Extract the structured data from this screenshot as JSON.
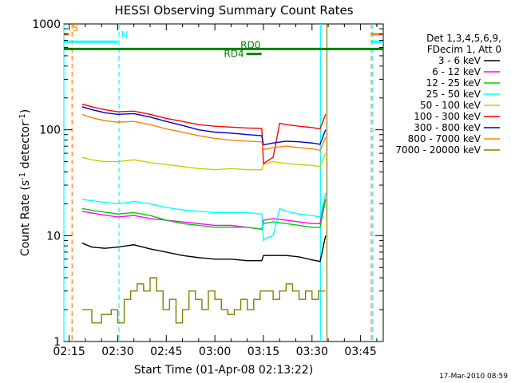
{
  "chart_data": {
    "type": "line",
    "title": "HESSI Observing Summary Count Rates",
    "xlabel": "Start Time (01-Apr-08 02:13:22)",
    "ylabel_main": "Count Rate (s",
    "ylabel_sup1": "-1",
    "ylabel_mid": " detector",
    "ylabel_sup2": "-1",
    "ylabel_end": ")",
    "y_scale": "log",
    "ylim": [
      1,
      1000
    ],
    "xlim": [
      "02:13:22",
      "03:52:00"
    ],
    "x_ticks": [
      {
        "label": "02:15",
        "min": 15
      },
      {
        "label": "02:30",
        "min": 30
      },
      {
        "label": "02:45",
        "min": 45
      },
      {
        "label": "03:00",
        "min": 60
      },
      {
        "label": "03:15",
        "min": 75
      },
      {
        "label": "03:30",
        "min": 90
      },
      {
        "label": "03:45",
        "min": 105
      }
    ],
    "y_ticks": [
      {
        "label": "1",
        "value": 1
      },
      {
        "label": "10",
        "value": 10
      },
      {
        "label": "100",
        "value": 100
      },
      {
        "label": "1000",
        "value": 1000
      }
    ],
    "legend_header": [
      "Det 1,3,4,5,6,9,",
      "FDecim 1, Att 0"
    ],
    "legend_placement": "right",
    "series": [
      {
        "name": "3 - 6 keV",
        "color": "#000000",
        "x": [
          19,
          22,
          26,
          30,
          35,
          40,
          45,
          50,
          55,
          60,
          65,
          70,
          74.5,
          75,
          78,
          82,
          86,
          90,
          92.5,
          94.2
        ],
        "y": [
          8.5,
          7.8,
          7.6,
          7.8,
          8.2,
          7.5,
          7.0,
          6.5,
          6.2,
          6.0,
          6.0,
          5.8,
          5.8,
          6.5,
          6.5,
          6.5,
          6.3,
          5.9,
          5.7,
          10
        ]
      },
      {
        "name": "6 - 12 keV",
        "color": "#ff00ff",
        "x": [
          19,
          24,
          30,
          35,
          40,
          45,
          50,
          55,
          60,
          65,
          70,
          74.5,
          75,
          78,
          82,
          86,
          90,
          92.5,
          94.2
        ],
        "y": [
          17,
          16,
          15,
          15.5,
          14.5,
          14,
          13.5,
          13,
          12.5,
          12.5,
          12,
          11.5,
          14,
          14.5,
          14,
          13.5,
          13,
          13,
          25
        ]
      },
      {
        "name": "12 - 25 keV",
        "color": "#00cc00",
        "x": [
          19,
          24,
          30,
          35,
          40,
          45,
          50,
          55,
          60,
          65,
          70,
          74.5,
          75,
          78,
          82,
          86,
          90,
          92.5,
          94.2
        ],
        "y": [
          18,
          17,
          16,
          16.5,
          15.5,
          14,
          13,
          12.5,
          12,
          12,
          12,
          11.5,
          13,
          13.5,
          13,
          12.5,
          12,
          12,
          22
        ]
      },
      {
        "name": "25 - 50 keV",
        "color": "#00ffff",
        "x": [
          19,
          24,
          30,
          35,
          40,
          45,
          50,
          55,
          60,
          65,
          70,
          74.5,
          75,
          76,
          78,
          80,
          82,
          86,
          90,
          92.5,
          94.2
        ],
        "y": [
          22,
          21,
          20,
          21,
          20,
          18.5,
          17.5,
          17,
          16.5,
          16.5,
          16.5,
          16,
          9,
          9.5,
          10,
          18,
          17,
          16,
          15.5,
          15,
          25
        ]
      },
      {
        "name": "50 - 100 keV",
        "color": "#cccc00",
        "x": [
          19,
          22,
          26,
          30,
          35,
          40,
          45,
          50,
          55,
          60,
          65,
          70,
          74.5,
          75,
          78,
          82,
          86,
          90,
          92.5,
          94.2
        ],
        "y": [
          55,
          52,
          50,
          50,
          52,
          49,
          47,
          45,
          43,
          42,
          43,
          42,
          42,
          47,
          50,
          48,
          47,
          46,
          45,
          60
        ]
      },
      {
        "name": "100 - 300 keV",
        "color": "#ff0000",
        "x": [
          19,
          22,
          26,
          30,
          35,
          40,
          45,
          50,
          55,
          60,
          65,
          70,
          74.5,
          75,
          78,
          80,
          82,
          86,
          90,
          92.5,
          94.2
        ],
        "y": [
          175,
          165,
          155,
          148,
          150,
          140,
          128,
          120,
          112,
          108,
          106,
          104,
          103,
          48,
          55,
          115,
          112,
          108,
          105,
          102,
          140
        ]
      },
      {
        "name": "300 - 800 keV",
        "color": "#0000cc",
        "x": [
          19,
          22,
          26,
          30,
          35,
          40,
          45,
          50,
          55,
          60,
          65,
          70,
          74.5,
          75,
          78,
          82,
          86,
          90,
          92.5,
          94.2
        ],
        "y": [
          165,
          155,
          145,
          140,
          142,
          132,
          120,
          110,
          100,
          95,
          93,
          90,
          88,
          72,
          75,
          78,
          77,
          75,
          73,
          100
        ]
      },
      {
        "name": "800 - 7000 keV",
        "color": "#ff8000",
        "x": [
          19,
          22,
          26,
          30,
          35,
          40,
          45,
          50,
          55,
          60,
          65,
          70,
          74.5,
          75,
          78,
          82,
          86,
          90,
          92.5,
          94.2
        ],
        "y": [
          140,
          130,
          122,
          118,
          120,
          112,
          102,
          95,
          88,
          83,
          80,
          78,
          77,
          65,
          68,
          70,
          68,
          66,
          64,
          85
        ]
      },
      {
        "name": "7000 - 20000 keV",
        "color": "#808000",
        "x": [
          19,
          22,
          25,
          28,
          30,
          32,
          34,
          36,
          38,
          40,
          42,
          44,
          46,
          48,
          50,
          52,
          54,
          56,
          58,
          60,
          62,
          64,
          66,
          68,
          70,
          72,
          74,
          76,
          78,
          80,
          82,
          84,
          86,
          88,
          90,
          92,
          94
        ],
        "y": [
          2,
          1.5,
          1.8,
          2,
          1.5,
          2.5,
          3,
          3.5,
          3,
          4,
          3,
          2,
          2.5,
          1.5,
          2,
          3,
          2.5,
          2,
          3,
          2.5,
          2,
          1.8,
          2,
          2.5,
          2,
          2.5,
          3,
          3,
          2.5,
          3,
          3.5,
          3,
          2.5,
          3,
          2.5,
          3,
          3
        ]
      }
    ],
    "markers": [
      {
        "label": "S",
        "color": "#ff8000",
        "x": 15,
        "y": 800,
        "style": "bar-left"
      },
      {
        "label": "N",
        "color": "#00ffff",
        "x": 30,
        "y": 680,
        "style": "bar-left"
      },
      {
        "label": "RD0",
        "color": "#008000",
        "x": 71,
        "y": 580,
        "style": "full"
      },
      {
        "label": "RD4",
        "color": "#008000",
        "x": 69,
        "y": 520,
        "style": "short"
      }
    ],
    "vertical_lines": [
      {
        "x": 13.37,
        "color": "#00ffff",
        "dash": false
      },
      {
        "x": 15.9,
        "color": "#ff8000",
        "dash": true
      },
      {
        "x": 30.4,
        "color": "#00ffff",
        "dash": true
      },
      {
        "x": 92.6,
        "color": "#00ffff",
        "dash": false
      },
      {
        "x": 94.6,
        "color": "#808000",
        "dash": false
      },
      {
        "x": 108.3,
        "color": "#ff8000",
        "dash": true
      },
      {
        "x": 108.8,
        "color": "#00ffff",
        "dash": true
      }
    ]
  },
  "footer": {
    "timestamp": "17-Mar-2010 08:59"
  }
}
